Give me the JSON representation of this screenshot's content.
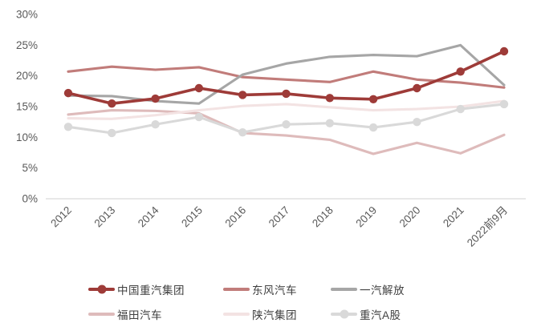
{
  "chart_data": {
    "type": "line",
    "title": "",
    "xlabel": "",
    "ylabel": "",
    "grid": false,
    "legend_position": "bottom",
    "categories": [
      "2012",
      "2013",
      "2014",
      "2015",
      "2016",
      "2017",
      "2018",
      "2019",
      "2020",
      "2021",
      "2022前9月"
    ],
    "y_axis": {
      "min": 0,
      "max": 30,
      "tick_step": 5,
      "tick_labels": [
        "0%",
        "5%",
        "10%",
        "15%",
        "20%",
        "25%",
        "30%"
      ],
      "unit": "%"
    },
    "series": [
      {
        "name": "中国重汽集团",
        "color": "#9e3b38",
        "marker": true,
        "values": [
          17.2,
          15.5,
          16.3,
          18.0,
          16.9,
          17.1,
          16.4,
          16.2,
          18.0,
          20.7,
          24.0
        ]
      },
      {
        "name": "东风汽车",
        "color": "#c17c7a",
        "marker": false,
        "values": [
          20.7,
          21.5,
          21.0,
          21.4,
          19.8,
          19.4,
          19.0,
          20.7,
          19.4,
          18.9,
          18.1
        ]
      },
      {
        "name": "一汽解放",
        "color": "#a6a6a6",
        "marker": false,
        "values": [
          16.8,
          16.7,
          15.9,
          15.5,
          20.2,
          22.0,
          23.1,
          23.4,
          23.2,
          25.0,
          18.5
        ]
      },
      {
        "name": "福田汽车",
        "color": "#debbbb",
        "marker": false,
        "values": [
          13.7,
          14.4,
          14.3,
          13.9,
          10.7,
          10.3,
          9.6,
          7.3,
          9.1,
          7.4,
          10.4
        ]
      },
      {
        "name": "陕汽集团",
        "color": "#f3e3e3",
        "marker": false,
        "values": [
          13.1,
          13.0,
          13.6,
          14.4,
          15.1,
          15.4,
          14.9,
          14.4,
          14.6,
          15.0,
          15.9
        ]
      },
      {
        "name": "重汽A股",
        "color": "#d9d9d9",
        "marker": true,
        "values": [
          11.7,
          10.7,
          12.1,
          13.3,
          10.8,
          12.1,
          12.3,
          11.6,
          12.5,
          14.6,
          15.4
        ]
      }
    ]
  },
  "styles": {
    "axis_line_color": "#d9d9d9",
    "tick_text_color": "#595959",
    "legend_text_color": "#404040"
  }
}
